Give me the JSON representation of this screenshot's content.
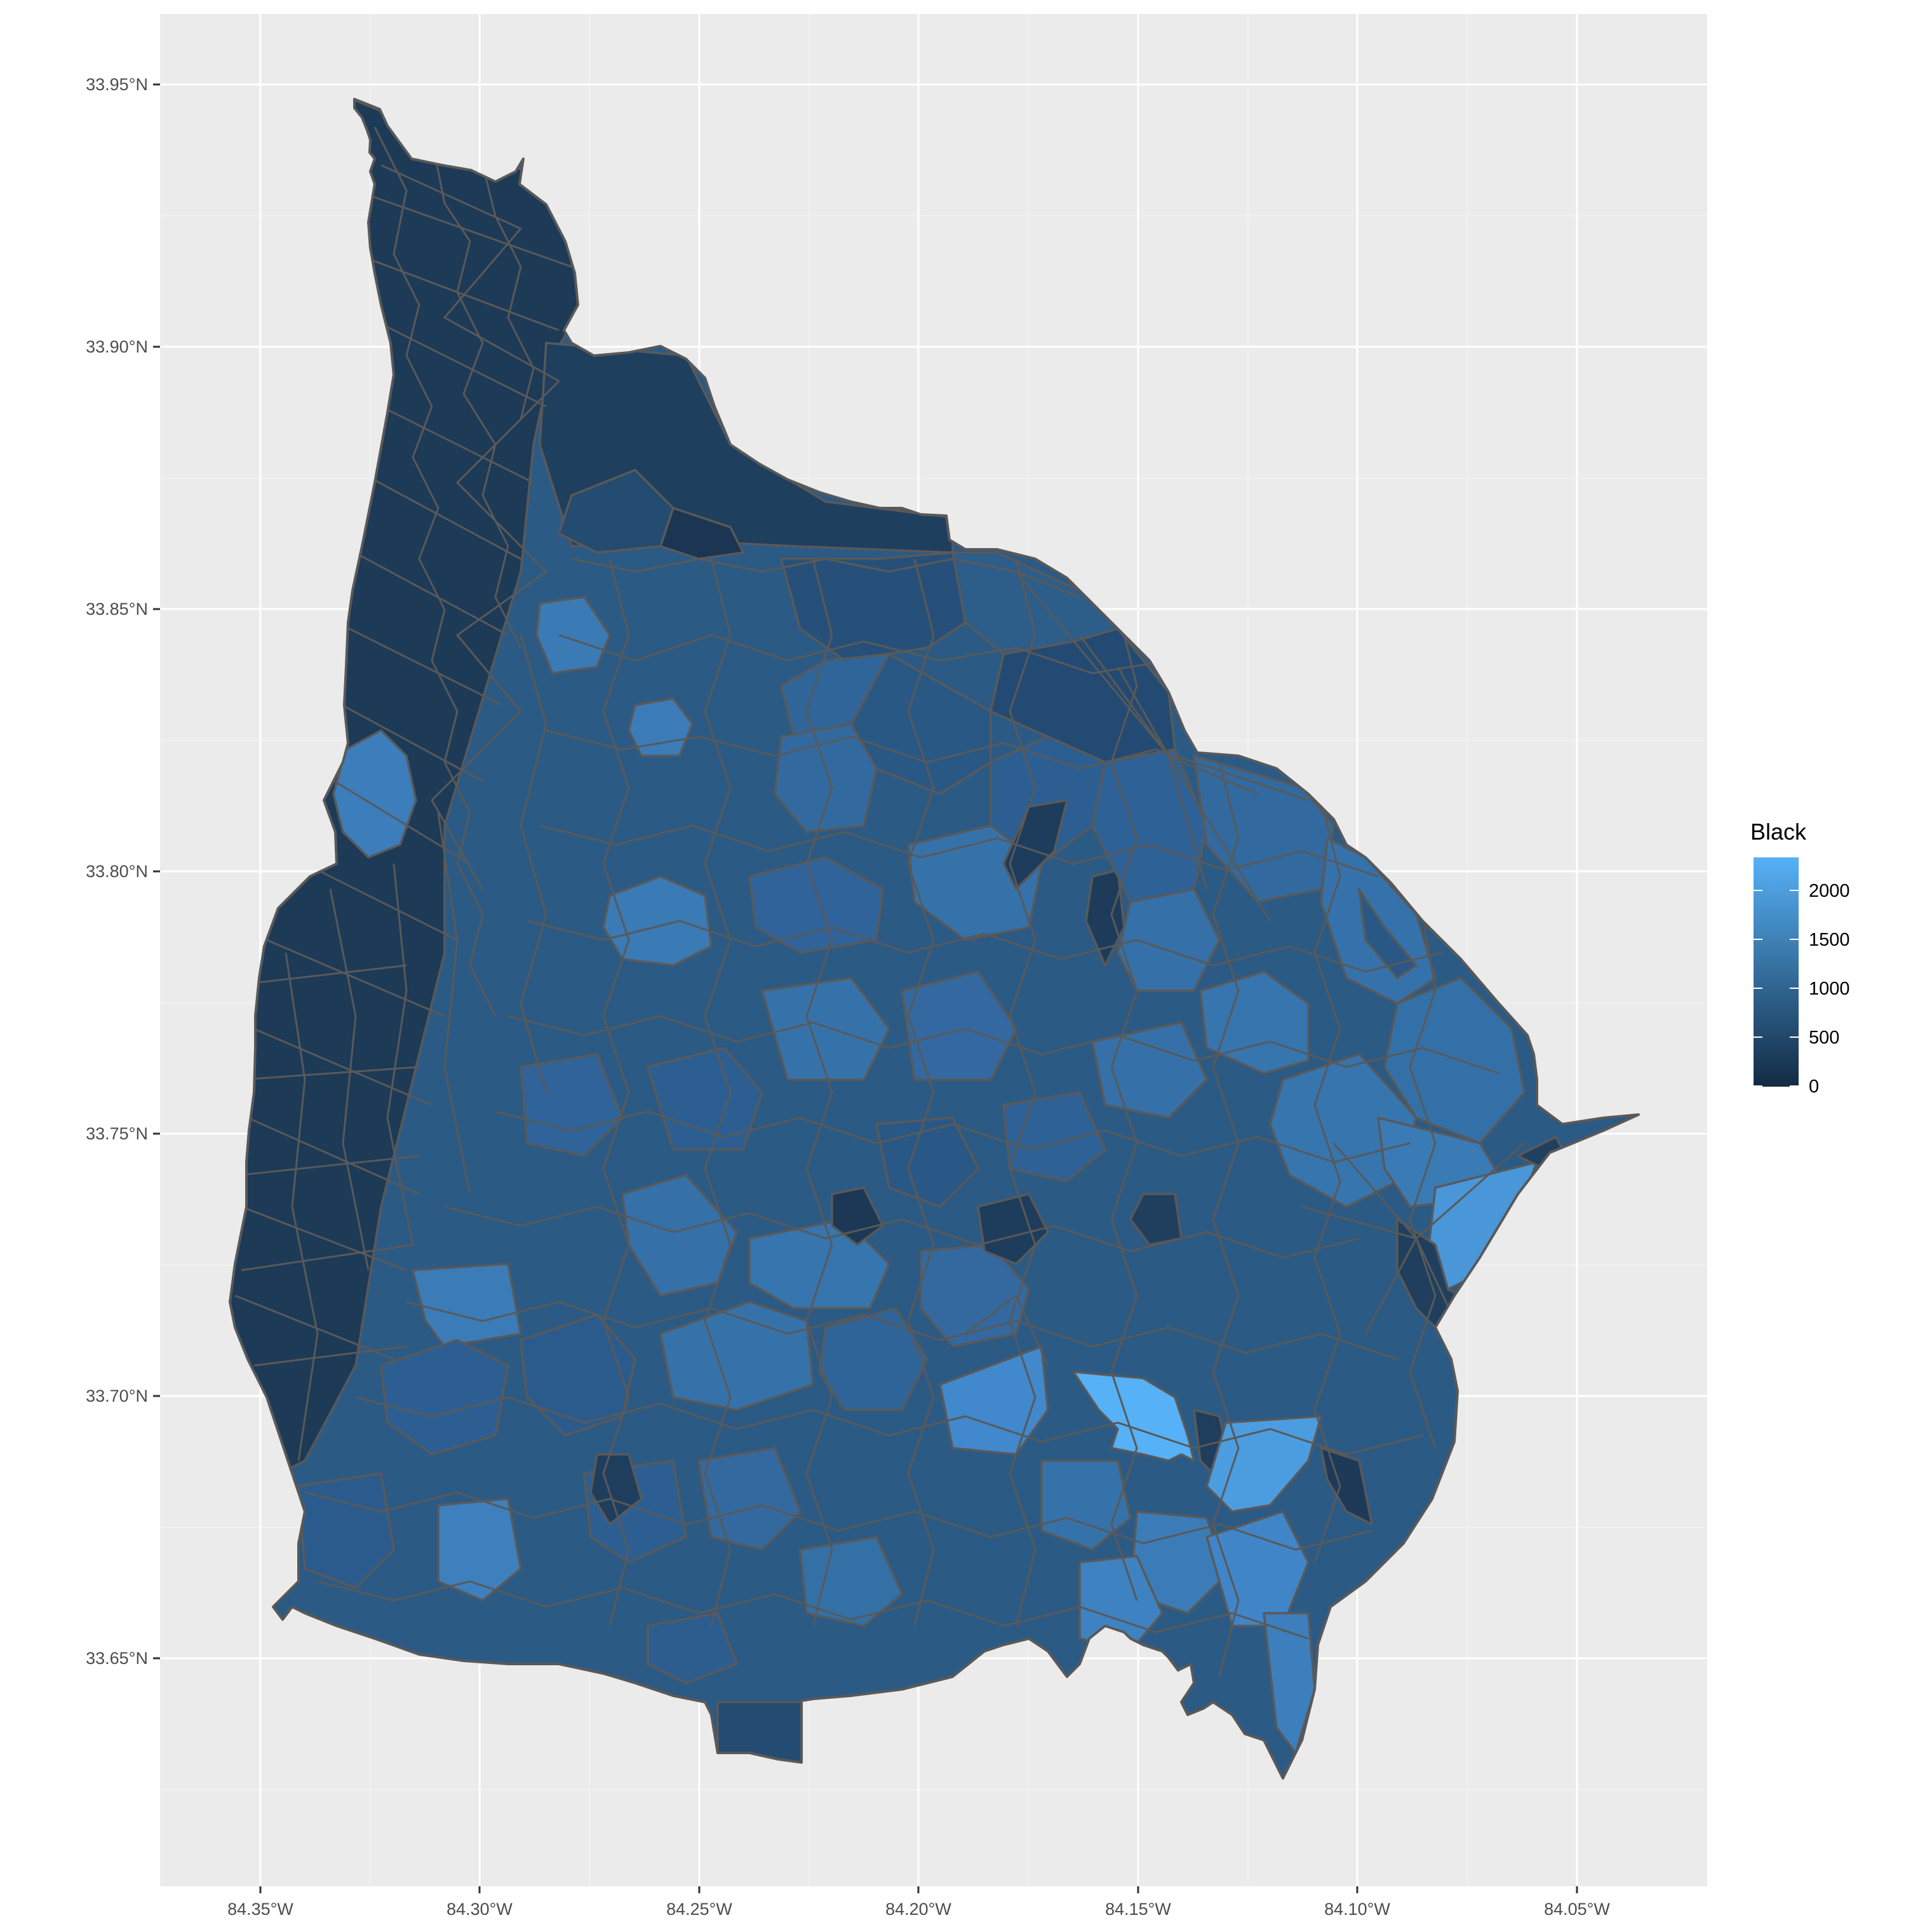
{
  "map": {
    "x_ticks": [
      "84.35°W",
      "84.30°W",
      "84.25°W",
      "84.20°W",
      "84.15°W",
      "84.10°W",
      "84.05°W"
    ],
    "y_ticks": [
      "33.95°N",
      "33.90°N",
      "33.85°N",
      "33.80°N",
      "33.75°N",
      "33.70°N",
      "33.65°N"
    ],
    "legend": {
      "title": "Black",
      "labels": [
        "2000",
        "1500",
        "1000",
        "500",
        "0"
      ],
      "range": [
        0,
        2350
      ],
      "color_low": "#132b43",
      "color_high": "#56b1f7"
    },
    "colors": {
      "panel_background": "#ebebeb",
      "grid": "#ffffff",
      "border": "#595959"
    }
  }
}
